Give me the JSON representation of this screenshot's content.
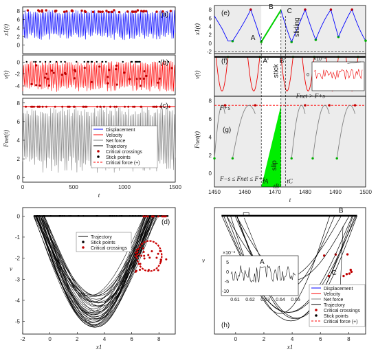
{
  "chart_data": [
    {
      "id": "a",
      "type": "line",
      "panel_label": "(a)",
      "ylabel": "x1(t)",
      "yticks": [
        "8",
        "6",
        "4",
        "2",
        "0"
      ],
      "ylim": [
        -2,
        9
      ],
      "xlim": [
        0,
        1500
      ],
      "series": [
        {
          "name": "Displacement",
          "color": "#0000ff",
          "band": [
            1.2,
            8.3
          ]
        }
      ],
      "critical_level": 8.0
    },
    {
      "id": "b",
      "type": "line",
      "panel_label": "(b)",
      "ylabel": "v(t)",
      "yticks": [
        "0",
        "-2",
        "-4"
      ],
      "ylim": [
        -5.5,
        1.2
      ],
      "xlim": [
        0,
        1500
      ],
      "series": [
        {
          "name": "Velocity",
          "color": "#ff0000",
          "band": [
            -5,
            0.2
          ]
        }
      ]
    },
    {
      "id": "c",
      "type": "line",
      "panel_label": "(c)",
      "ylabel": "Fnet(t)",
      "yticks": [
        "8",
        "6",
        "4",
        "2",
        "0"
      ],
      "ylim": [
        -0.5,
        8.5
      ],
      "xlim": [
        0,
        1500
      ],
      "xticks": [
        "0",
        "500",
        "1000",
        "1500"
      ],
      "xlabel": "t",
      "series": [
        {
          "name": "Net force",
          "color": "#808080",
          "band": [
            0.5,
            7.6
          ]
        }
      ],
      "critical_force": 7.6,
      "legend": [
        "Displacement",
        "Velocity",
        "Net force",
        "Trajectory",
        "Critical crossings",
        "Stick points",
        "Critical force (+)"
      ]
    },
    {
      "id": "d",
      "type": "line",
      "panel_label": "(d)",
      "xlabel": "x1",
      "ylabel": "v",
      "xticks": [
        "-2",
        "0",
        "2",
        "4",
        "6",
        "8"
      ],
      "yticks": [
        "0",
        "-1",
        "-2",
        "-3",
        "-4",
        "-5"
      ],
      "xlim": [
        -2,
        9.2
      ],
      "ylim": [
        -5.6,
        0.4
      ],
      "legend": [
        "Trajectory",
        "Stick points",
        "Critical crossings"
      ]
    },
    {
      "id": "e",
      "type": "line",
      "panel_label": "(e)",
      "ylabel": "x1(t)",
      "yticks": [
        "8",
        "6",
        "4",
        "2",
        "0",
        "-2"
      ],
      "ylim": [
        -2.5,
        9
      ],
      "xlim": [
        1450,
        1500
      ],
      "points": {
        "A": "A",
        "B": "B",
        "C": "C"
      },
      "annotation": "sliding",
      "segments": [
        {
          "x": [
            1450,
            1452.5,
            1454.5,
            1456
          ],
          "y": [
            6.5,
            3.5,
            0.5,
            0.5
          ]
        },
        {
          "x": [
            1456,
            1460,
            1462
          ],
          "y": [
            0.5,
            5,
            8
          ]
        },
        {
          "x": [
            1462,
            1464.5,
            1465.5
          ],
          "y": [
            8,
            3,
            0.3
          ]
        },
        {
          "x": [
            1465.5,
            1472
          ],
          "y": [
            0.3,
            7.9
          ],
          "color": "#00d000"
        },
        {
          "x": [
            1472,
            1474,
            1475.5
          ],
          "y": [
            7.9,
            3,
            0.3
          ]
        },
        {
          "x": [
            1475.5,
            1478,
            1480
          ],
          "y": [
            0.3,
            4.5,
            8
          ]
        },
        {
          "x": [
            1480,
            1482,
            1483.5
          ],
          "y": [
            8,
            3.5,
            0.8
          ]
        },
        {
          "x": [
            1483.5,
            1486,
            1488.5
          ],
          "y": [
            0.8,
            5.5,
            8
          ]
        },
        {
          "x": [
            1488.5,
            1490,
            1491
          ],
          "y": [
            8,
            4,
            1.5
          ]
        },
        {
          "x": [
            1491,
            1494.5,
            1495.5
          ],
          "y": [
            1.5,
            7.2,
            8
          ]
        },
        {
          "x": [
            1495.5,
            1498,
            1500
          ],
          "y": [
            8,
            2.8,
            0.6
          ]
        }
      ]
    },
    {
      "id": "f",
      "type": "line",
      "panel_label": "(f)",
      "ylabel": "v(t)",
      "ylim": [
        -6,
        0.5
      ],
      "xlim": [
        1450,
        1500
      ],
      "points": {
        "A'": "A'",
        "B'": "B'"
      },
      "annotation": "stick",
      "inset": {
        "exponent": "×10⁻³",
        "tick": "0"
      }
    },
    {
      "id": "g",
      "type": "line",
      "panel_label": "(g)",
      "ylabel": "Fnet(t)",
      "xlabel": "t",
      "yticks": [
        "8",
        "6",
        "4",
        "2",
        "0"
      ],
      "xticks": [
        "1450",
        "1460",
        "1470",
        "1480",
        "1490",
        "1500"
      ],
      "ylim": [
        -1.5,
        8.5
      ],
      "xlim": [
        1450,
        1500
      ],
      "critical_force": 7.5,
      "annotations": {
        "f_upper": "Fnet > F+s",
        "f_plus": "F+s",
        "f_range": "F−s ≤ Fnet ≤ F+s",
        "slip": "slip",
        "tA": "tA",
        "tB": "tB",
        "tC": "tC"
      }
    },
    {
      "id": "h",
      "type": "line",
      "panel_label": "(h)",
      "xlabel": "x1",
      "ylabel": "v",
      "xticks": [
        "0",
        "2",
        "4",
        "6",
        "8"
      ],
      "xlim": [
        -1.5,
        9.2
      ],
      "ylim": [
        -5.8,
        0.4
      ],
      "points": {
        "A": "A",
        "B": "B",
        "C": "C"
      },
      "inset": {
        "exponent": "×10⁻³",
        "label": "A",
        "xticks": [
          "0.61",
          "0.62",
          "0.63",
          "0.64",
          "0.65"
        ],
        "yticks": [
          "5",
          "0",
          "-5",
          "-10"
        ]
      },
      "legend": [
        "Displacement",
        "Velocity",
        "Net force",
        "Trajectory",
        "Critical crossings",
        "Stick points",
        "Critical force (+)"
      ]
    }
  ]
}
